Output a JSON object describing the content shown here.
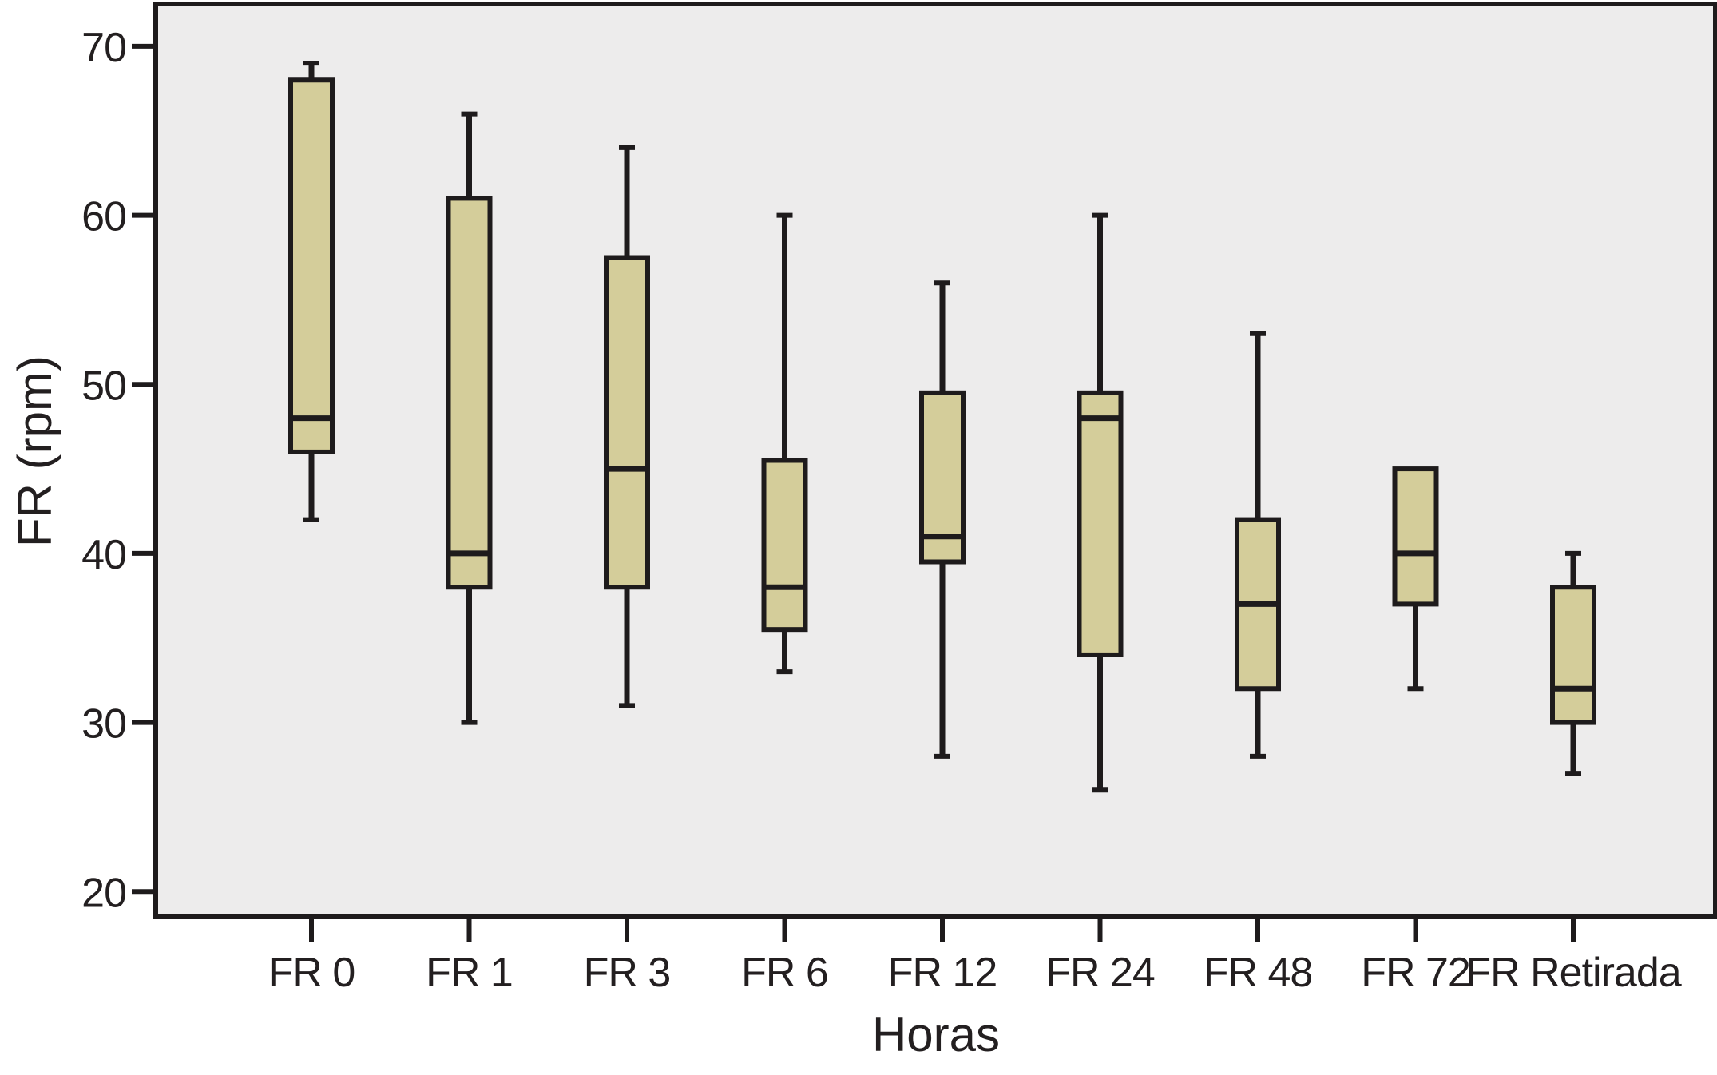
{
  "colors": {
    "box_fill": "#D4CD9A",
    "line": "#1E1B1C",
    "plot_bg": "#EDECEC",
    "page_bg": "#FFFFFF",
    "text": "#231F20"
  },
  "chart_data": {
    "type": "boxplot",
    "title": "",
    "xlabel": "Horas",
    "ylabel": "FR (rpm)",
    "categories": [
      "FR 0",
      "FR 1",
      "FR 3",
      "FR 6",
      "FR 12",
      "FR 24",
      "FR 48",
      "FR 72",
      "FR Retirada"
    ],
    "yticks": [
      70,
      60,
      50,
      40,
      30,
      20
    ],
    "ylim": [
      18.5,
      72.5
    ],
    "grid": false,
    "legend": null,
    "boxes": [
      {
        "category": "FR 0",
        "min": 42,
        "q1": 46,
        "median": 48,
        "q3": 68,
        "max": 69
      },
      {
        "category": "FR 1",
        "min": 30,
        "q1": 38,
        "median": 40,
        "q3": 61,
        "max": 66
      },
      {
        "category": "FR 3",
        "min": 31,
        "q1": 38,
        "median": 45,
        "q3": 57.5,
        "max": 64
      },
      {
        "category": "FR 6",
        "min": 33,
        "q1": 35.5,
        "median": 38,
        "q3": 45.5,
        "max": 60
      },
      {
        "category": "FR 12",
        "min": 28,
        "q1": 39.5,
        "median": 41,
        "q3": 49.5,
        "max": 56
      },
      {
        "category": "FR 24",
        "min": 26,
        "q1": 34,
        "median": 48,
        "q3": 49.5,
        "max": 60
      },
      {
        "category": "FR 48",
        "min": 28,
        "q1": 32,
        "median": 37,
        "q3": 42,
        "max": 53
      },
      {
        "category": "FR 72",
        "min": 32,
        "q1": 37,
        "median": 40,
        "q3": 45,
        "max": 45
      },
      {
        "category": "FR Retirada",
        "min": 27,
        "q1": 30,
        "median": 32,
        "q3": 38,
        "max": 40
      }
    ]
  }
}
